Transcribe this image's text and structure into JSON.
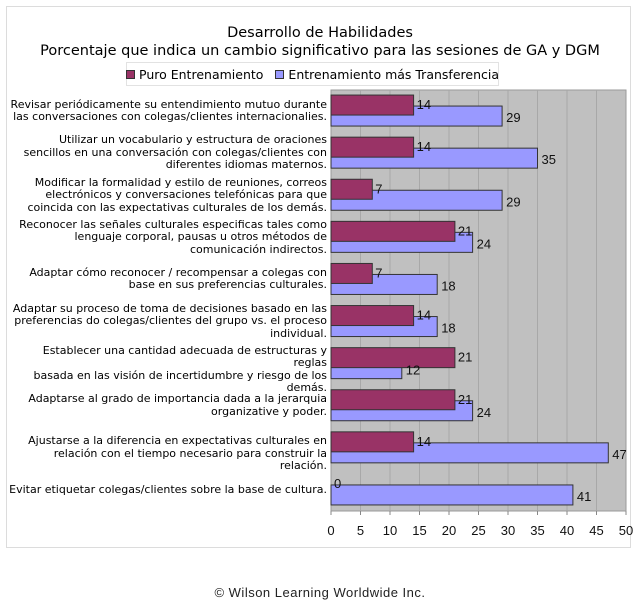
{
  "chart_data": {
    "type": "bar",
    "orientation": "horizontal",
    "title": "Desarrollo de Habilidades",
    "subtitle": "Porcentaje que indica un cambio significativo para las sesiones de GA y DGM",
    "xlabel": "",
    "ylabel": "",
    "xlim": [
      0,
      50
    ],
    "xticks": [
      0,
      5,
      10,
      15,
      20,
      25,
      30,
      35,
      40,
      45,
      50
    ],
    "grid": true,
    "legend_position": "top-center",
    "categories": [
      "Revisar periódicamente su entendimiento mutuo durante las conversaciones con colegas/clientes internacionalies.",
      "Utilizar un vocabulario y estructura de oraciones sencillos en una conversación con colegas/clientes con diferentes idiomas maternos.",
      "Modificar la formalidad y estilo de reuniones, correos electrónicos y conversaciones telefónicas para que coincida con las expectativas culturales de los demás.",
      "Reconocer las señales culturales especificas tales como lenguaje corporal, pausas u otros métodos de comunicación indirectos.",
      "Adaptar cómo reconocer / recompensar a colegas con base en sus preferencias culturales.",
      "Adaptar su proceso de toma de decisiones basado en las preferencias do colegas/clientes del grupo vs. el proceso individual.",
      "Establecer una cantidad adecuada de estructuras y reglas basada en las visión de incertidumbre y riesgo de los demás.",
      "Adaptarse al grado de importancia dada a la jerarquia organizative y poder.",
      "Ajustarse a la diferencia en expectativas culturales en relación con el tiempo necesario para construir la relación.",
      "Evitar etiquetar colegas/clientes sobre la base de cultura."
    ],
    "category_lines": [
      [
        "Revisar periódicamente su entendimiento mutuo durante",
        "las conversaciones con colegas/clientes internacionalies."
      ],
      [
        "Utilizar un vocabulario y estructura de oraciones",
        "sencillos en una conversación con colegas/clientes con",
        "diferentes idiomas maternos."
      ],
      [
        "Modificar la formalidad y estilo de reuniones, correos",
        "electrónicos y conversaciones telefónicas para que",
        "coincida con las expectativas culturales de los demás."
      ],
      [
        "Reconocer las señales culturales especificas tales como",
        "lenguaje corporal, pausas u otros métodos de",
        "comunicación indirectos."
      ],
      [
        "Adaptar cómo reconocer / recompensar a colegas con",
        "base en sus preferencias culturales."
      ],
      [
        "Adaptar su proceso de toma de decisiones basado en las",
        "preferencias do colegas/clientes del grupo vs. el proceso",
        "individual."
      ],
      [
        "Establecer una cantidad adecuada de estructuras y reglas",
        "basada en las visión de incertidumbre y riesgo de los",
        "demás."
      ],
      [
        "Adaptarse al grado de importancia dada a la jerarquia",
        "organizative y poder."
      ],
      [
        "Ajustarse a la diferencia en expectativas culturales en",
        "relación con el tiempo necesario para construir la relación."
      ],
      [
        "Evitar etiquetar colegas/clientes sobre la base de cultura."
      ]
    ],
    "series": [
      {
        "name": "Puro Entrenamiento",
        "color": "#993366",
        "values": [
          14,
          14,
          7,
          21,
          7,
          14,
          21,
          21,
          14,
          0
        ]
      },
      {
        "name": "Entrenamiento más Transferencia",
        "color": "#9999ff",
        "values": [
          29,
          35,
          29,
          24,
          18,
          18,
          12,
          24,
          47,
          41
        ]
      }
    ],
    "plot_background": "#c0c0c0",
    "gridline_color": "#a8a8a8"
  },
  "footer": {
    "copyright": "© Wilson Learning Worldwide Inc."
  }
}
